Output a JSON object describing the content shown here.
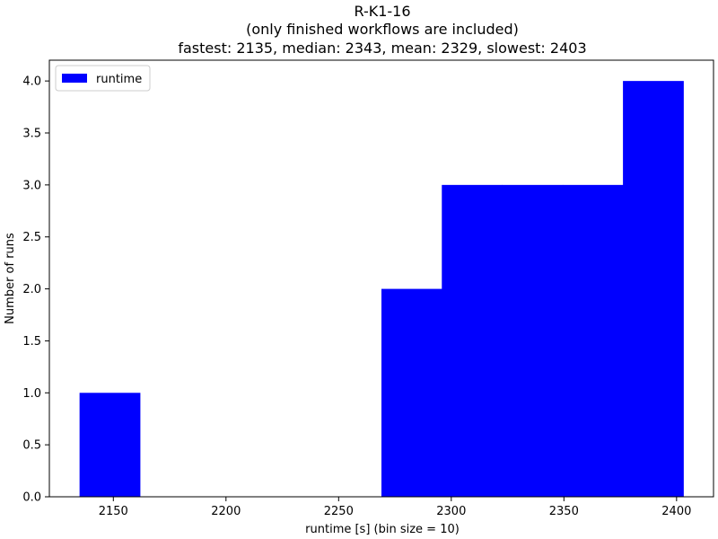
{
  "chart_data": {
    "type": "bar",
    "title_lines": [
      "R-K1-16",
      "(only finished workflows are included)",
      "fastest: 2135, median: 2343, mean: 2329, slowest: 2403"
    ],
    "xlabel": "runtime [s] (bin size = 10)",
    "ylabel": "Number of runs",
    "xlim": [
      2121.6,
      2416.4
    ],
    "ylim": [
      0,
      4.2
    ],
    "x_ticks": [
      2150,
      2200,
      2250,
      2300,
      2350,
      2400
    ],
    "y_ticks": [
      0.0,
      0.5,
      1.0,
      1.5,
      2.0,
      2.5,
      3.0,
      3.5,
      4.0
    ],
    "y_tick_labels": [
      "0.0",
      "0.5",
      "1.0",
      "1.5",
      "2.0",
      "2.5",
      "3.0",
      "3.5",
      "4.0"
    ],
    "legend": {
      "label": "runtime",
      "placement": "top-left"
    },
    "series": [
      {
        "name": "runtime",
        "color": "#0000ff",
        "bins": [
          {
            "x0": 2135.0,
            "x1": 2161.8,
            "count": 1
          },
          {
            "x0": 2161.8,
            "x1": 2188.6,
            "count": 0
          },
          {
            "x0": 2188.6,
            "x1": 2215.4,
            "count": 0
          },
          {
            "x0": 2215.4,
            "x1": 2242.2,
            "count": 0
          },
          {
            "x0": 2242.2,
            "x1": 2269.0,
            "count": 0
          },
          {
            "x0": 2269.0,
            "x1": 2295.8,
            "count": 2
          },
          {
            "x0": 2295.8,
            "x1": 2322.6,
            "count": 3
          },
          {
            "x0": 2322.6,
            "x1": 2349.4,
            "count": 3
          },
          {
            "x0": 2349.4,
            "x1": 2376.2,
            "count": 3
          },
          {
            "x0": 2376.2,
            "x1": 2403.0,
            "count": 4
          }
        ]
      }
    ],
    "grid": false
  }
}
